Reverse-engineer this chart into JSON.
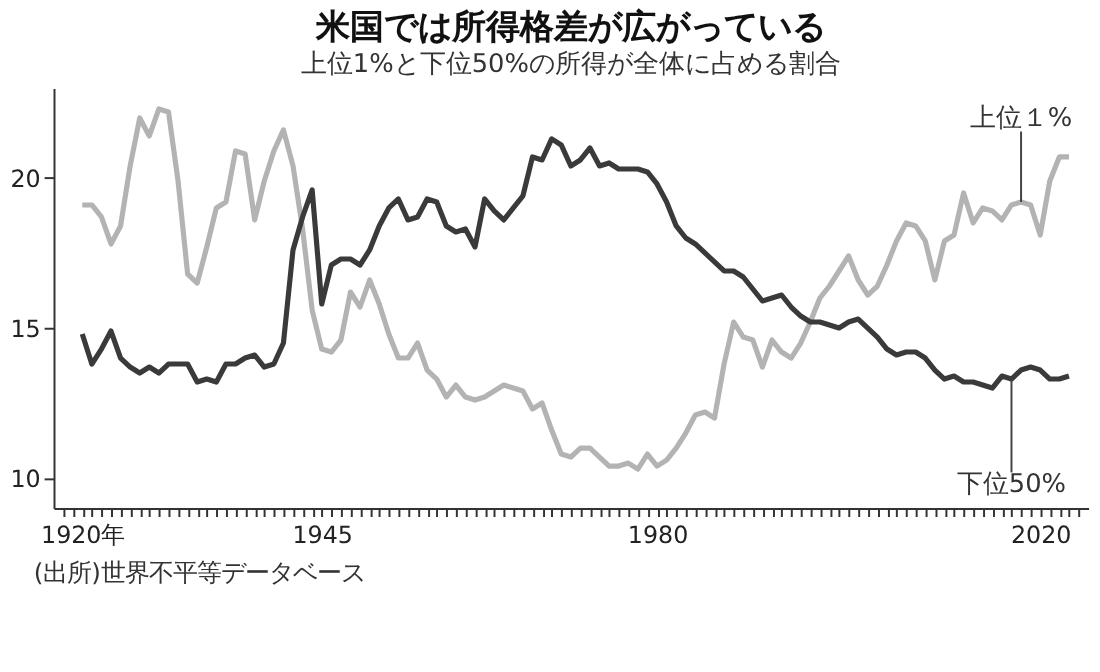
{
  "chart_data": {
    "type": "line",
    "title": "米国では所得格差が広がっている",
    "subtitle": "上位1%と下位50%の所得が全体に占める割合",
    "annotations": [
      "(出所)世界不平等データベース"
    ],
    "x": [
      1920,
      1921,
      1922,
      1923,
      1924,
      1925,
      1926,
      1927,
      1928,
      1929,
      1930,
      1931,
      1932,
      1933,
      1934,
      1935,
      1936,
      1937,
      1938,
      1939,
      1940,
      1941,
      1942,
      1943,
      1944,
      1945,
      1946,
      1947,
      1948,
      1949,
      1950,
      1951,
      1952,
      1953,
      1954,
      1955,
      1956,
      1957,
      1958,
      1959,
      1960,
      1961,
      1962,
      1963,
      1964,
      1965,
      1966,
      1967,
      1968,
      1969,
      1970,
      1971,
      1972,
      1973,
      1974,
      1975,
      1976,
      1977,
      1978,
      1979,
      1980,
      1981,
      1982,
      1983,
      1984,
      1985,
      1986,
      1987,
      1988,
      1989,
      1990,
      1991,
      1992,
      1993,
      1994,
      1995,
      1996,
      1997,
      1998,
      1999,
      2000,
      2001,
      2002,
      2003,
      2004,
      2005,
      2006,
      2007,
      2008,
      2009,
      2010,
      2011,
      2012,
      2013,
      2014,
      2015,
      2016,
      2017,
      2018,
      2019,
      2020,
      2021,
      2022,
      2023
    ],
    "series": [
      {
        "name": "上位１%",
        "color": "#b3b3b3",
        "values": [
          19.1,
          19.1,
          18.7,
          17.8,
          18.4,
          20.4,
          22.0,
          21.4,
          22.3,
          22.2,
          19.9,
          16.8,
          16.5,
          17.7,
          19.0,
          19.2,
          20.9,
          20.8,
          18.6,
          19.9,
          20.9,
          21.6,
          20.4,
          18.3,
          15.6,
          14.3,
          14.2,
          14.6,
          16.2,
          15.7,
          16.6,
          15.8,
          14.8,
          14.0,
          14.0,
          14.5,
          13.6,
          13.3,
          12.7,
          13.1,
          12.7,
          12.6,
          12.7,
          12.9,
          13.1,
          13.0,
          12.9,
          12.3,
          12.5,
          11.6,
          10.8,
          10.7,
          11.0,
          11.0,
          10.7,
          10.4,
          10.4,
          10.5,
          10.3,
          10.8,
          10.4,
          10.6,
          11.0,
          11.5,
          12.1,
          12.2,
          12.0,
          13.8,
          15.2,
          14.7,
          14.6,
          13.7,
          14.6,
          14.2,
          14.0,
          14.5,
          15.2,
          16.0,
          16.4,
          16.9,
          17.4,
          16.6,
          16.1,
          16.4,
          17.1,
          17.9,
          18.5,
          18.4,
          17.9,
          16.6,
          17.9,
          18.1,
          19.5,
          18.5,
          19.0,
          18.9,
          18.6,
          19.1,
          19.2,
          19.1,
          18.1,
          19.9,
          20.7,
          20.7
        ]
      },
      {
        "name": "下位50%",
        "color": "#3a3a3a",
        "values": [
          14.8,
          13.8,
          14.3,
          14.9,
          14.0,
          13.7,
          13.5,
          13.7,
          13.5,
          13.8,
          13.8,
          13.8,
          13.2,
          13.3,
          13.2,
          13.8,
          13.8,
          14.0,
          14.1,
          13.7,
          13.8,
          14.5,
          17.6,
          18.7,
          19.6,
          15.8,
          17.1,
          17.3,
          17.3,
          17.1,
          17.6,
          18.4,
          19.0,
          19.3,
          18.6,
          18.7,
          19.3,
          19.2,
          18.4,
          18.2,
          18.3,
          17.7,
          19.3,
          18.9,
          18.6,
          19.0,
          19.4,
          20.7,
          20.6,
          21.3,
          21.1,
          20.4,
          20.6,
          21.0,
          20.4,
          20.5,
          20.3,
          20.3,
          20.3,
          20.2,
          19.8,
          19.2,
          18.4,
          18.0,
          17.8,
          17.5,
          17.2,
          16.9,
          16.9,
          16.7,
          16.3,
          15.9,
          16.0,
          16.1,
          15.7,
          15.4,
          15.2,
          15.2,
          15.1,
          15.0,
          15.2,
          15.3,
          15.0,
          14.7,
          14.3,
          14.1,
          14.2,
          14.2,
          14.0,
          13.6,
          13.3,
          13.4,
          13.2,
          13.2,
          13.1,
          13.0,
          13.4,
          13.3,
          13.6,
          13.7,
          13.6,
          13.3,
          13.3,
          13.4
        ]
      }
    ],
    "xlim": [
      1917,
      2025
    ],
    "xticks": [
      {
        "value": 1918,
        "label": null
      },
      {
        "value": 1919,
        "label": null
      },
      {
        "value": 1920,
        "label": "1920年"
      },
      {
        "value": 1921,
        "label": null
      },
      {
        "value": 1922,
        "label": null
      },
      {
        "value": 1923,
        "label": null
      },
      {
        "value": 1924,
        "label": null
      },
      {
        "value": 1925,
        "label": null
      },
      {
        "value": 1926,
        "label": null
      },
      {
        "value": 1927,
        "label": null
      },
      {
        "value": 1928,
        "label": null
      },
      {
        "value": 1929,
        "label": null
      },
      {
        "value": 1930,
        "label": null
      },
      {
        "value": 1931,
        "label": null
      },
      {
        "value": 1932,
        "label": null
      },
      {
        "value": 1933,
        "label": null
      },
      {
        "value": 1934,
        "label": null
      },
      {
        "value": 1935,
        "label": null
      },
      {
        "value": 1936,
        "label": null
      },
      {
        "value": 1937,
        "label": null
      },
      {
        "value": 1938,
        "label": null
      },
      {
        "value": 1939,
        "label": null
      },
      {
        "value": 1940,
        "label": null
      },
      {
        "value": 1941,
        "label": null
      },
      {
        "value": 1942,
        "label": null
      },
      {
        "value": 1943,
        "label": null
      },
      {
        "value": 1944,
        "label": null
      },
      1945,
      {
        "value": 1946,
        "label": null
      },
      {
        "value": 1947,
        "label": null
      },
      {
        "value": 1948,
        "label": null
      },
      {
        "value": 1949,
        "label": null
      },
      {
        "value": 1950,
        "label": null
      },
      {
        "value": 1951,
        "label": null
      },
      {
        "value": 1952,
        "label": null
      },
      {
        "value": 1953,
        "label": null
      },
      {
        "value": 1954,
        "label": null
      },
      {
        "value": 1955,
        "label": null
      },
      {
        "value": 1956,
        "label": null
      },
      {
        "value": 1957,
        "label": null
      },
      {
        "value": 1958,
        "label": null
      },
      {
        "value": 1959,
        "label": null
      },
      {
        "value": 1960,
        "label": null
      },
      {
        "value": 1961,
        "label": null
      },
      {
        "value": 1962,
        "label": null
      },
      {
        "value": 1963,
        "label": null
      },
      {
        "value": 1964,
        "label": null
      },
      {
        "value": 1965,
        "label": null
      },
      {
        "value": 1966,
        "label": null
      },
      {
        "value": 1967,
        "label": null
      },
      {
        "value": 1968,
        "label": null
      },
      {
        "value": 1969,
        "label": null
      },
      {
        "value": 1970,
        "label": null
      },
      {
        "value": 1971,
        "label": null
      },
      {
        "value": 1972,
        "label": null
      },
      {
        "value": 1973,
        "label": null
      },
      {
        "value": 1974,
        "label": null
      },
      {
        "value": 1975,
        "label": null
      },
      {
        "value": 1976,
        "label": null
      },
      {
        "value": 1977,
        "label": null
      },
      {
        "value": 1978,
        "label": null
      },
      {
        "value": 1979,
        "label": null
      },
      1980,
      {
        "value": 1981,
        "label": null
      },
      {
        "value": 1982,
        "label": null
      },
      {
        "value": 1983,
        "label": null
      },
      {
        "value": 1984,
        "label": null
      },
      {
        "value": 1985,
        "label": null
      },
      {
        "value": 1986,
        "label": null
      },
      {
        "value": 1987,
        "label": null
      },
      {
        "value": 1988,
        "label": null
      },
      {
        "value": 1989,
        "label": null
      },
      {
        "value": 1990,
        "label": null
      },
      {
        "value": 1991,
        "label": null
      },
      {
        "value": 1992,
        "label": null
      },
      {
        "value": 1993,
        "label": null
      },
      {
        "value": 1994,
        "label": null
      },
      {
        "value": 1995,
        "label": null
      },
      {
        "value": 1996,
        "label": null
      },
      {
        "value": 1997,
        "label": null
      },
      {
        "value": 1998,
        "label": null
      },
      {
        "value": 1999,
        "label": null
      },
      {
        "value": 2000,
        "label": null
      },
      {
        "value": 2001,
        "label": null
      },
      {
        "value": 2002,
        "label": null
      },
      {
        "value": 2003,
        "label": null
      },
      {
        "value": 2004,
        "label": null
      },
      {
        "value": 2005,
        "label": null
      },
      {
        "value": 2006,
        "label": null
      },
      {
        "value": 2007,
        "label": null
      },
      {
        "value": 2008,
        "label": null
      },
      {
        "value": 2009,
        "label": null
      },
      {
        "value": 2010,
        "label": null
      },
      {
        "value": 2011,
        "label": null
      },
      {
        "value": 2012,
        "label": null
      },
      {
        "value": 2013,
        "label": null
      },
      {
        "value": 2014,
        "label": null
      },
      {
        "value": 2015,
        "label": null
      },
      {
        "value": 2016,
        "label": null
      },
      {
        "value": 2017,
        "label": null
      },
      {
        "value": 2018,
        "label": null
      },
      {
        "value": 2019,
        "label": null
      },
      2020,
      {
        "value": 2021,
        "label": null
      },
      {
        "value": 2022,
        "label": null
      },
      {
        "value": 2023,
        "label": null
      },
      {
        "value": 2024,
        "label": null
      }
    ],
    "ylim": [
      9,
      23
    ],
    "yticks": [
      10,
      15,
      20
    ],
    "grid": false,
    "legend": false,
    "marker": "none",
    "line_style": "solid"
  }
}
